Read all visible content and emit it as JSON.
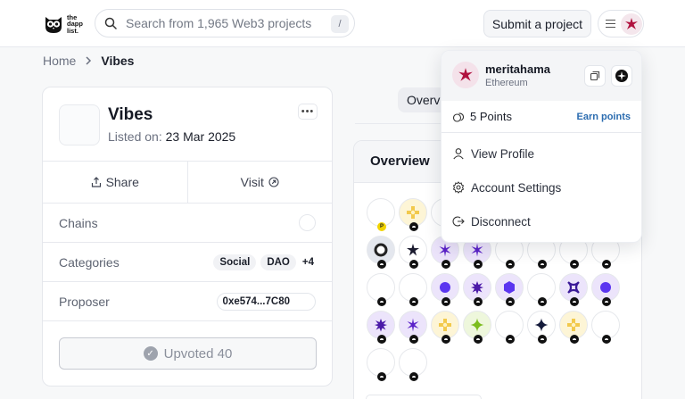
{
  "header": {
    "logo_text_lines": [
      "the",
      "dapp",
      "list."
    ],
    "search_placeholder": "Search from 1,965 Web3 projects",
    "search_shortcut": "/",
    "submit_label": "Submit a project"
  },
  "breadcrumb": {
    "home": "Home",
    "current": "Vibes"
  },
  "project": {
    "name": "Vibes",
    "listed_label": "Listed on:",
    "listed_date": "23 Mar 2025",
    "more": "•••",
    "share_label": "Share",
    "visit_label": "Visit",
    "chains_label": "Chains",
    "categories_label": "Categories",
    "categories": [
      "Social",
      "DAO"
    ],
    "categories_more": "+4",
    "proposer_label": "Proposer",
    "proposer_address": "0xe574...7C80",
    "upvote_label": "Upvoted 40"
  },
  "tabs": {
    "overview_partial": "Overview"
  },
  "overview": {
    "title": "Overview"
  },
  "dropdown": {
    "username": "meritahama",
    "network": "Ethereum",
    "points": "5 Points",
    "earn_points": "Earn points",
    "items": [
      "View Profile",
      "Account Settings",
      "Disconnect"
    ]
  },
  "colors": {
    "accent_link": "#2b6cb0",
    "avatar_star": "#b0123f",
    "nft_purple": "#5b22c9"
  },
  "nfts": [
    {
      "row": 0,
      "col": 0,
      "icon": "empty",
      "badge": "p"
    },
    {
      "row": 0,
      "col": 1,
      "icon": "yellow-cross",
      "badge": "dot"
    },
    {
      "row": 0,
      "col": 2,
      "icon": "empty",
      "badge": "dot"
    },
    {
      "row": 1,
      "col": 0,
      "icon": "ring",
      "badge": "dot"
    },
    {
      "row": 1,
      "col": 1,
      "icon": "black-star",
      "badge": "dot"
    },
    {
      "row": 1,
      "col": 2,
      "icon": "purple-asterisk",
      "badge": "dot"
    },
    {
      "row": 1,
      "col": 3,
      "icon": "purple-asterisk",
      "badge": "dot"
    },
    {
      "row": 1,
      "col": 4,
      "icon": "empty",
      "badge": "dot"
    },
    {
      "row": 1,
      "col": 5,
      "icon": "empty",
      "badge": "dot"
    },
    {
      "row": 1,
      "col": 6,
      "icon": "empty",
      "badge": "dot"
    },
    {
      "row": 1,
      "col": 7,
      "icon": "empty",
      "badge": "dot"
    },
    {
      "row": 2,
      "col": 0,
      "icon": "empty",
      "badge": "dot"
    },
    {
      "row": 2,
      "col": 1,
      "icon": "empty",
      "badge": "dot"
    },
    {
      "row": 2,
      "col": 2,
      "icon": "purple-circle",
      "badge": "dot"
    },
    {
      "row": 2,
      "col": 3,
      "icon": "purple-burst",
      "badge": "dot"
    },
    {
      "row": 2,
      "col": 4,
      "icon": "purple-hex",
      "badge": "dot"
    },
    {
      "row": 2,
      "col": 5,
      "icon": "empty",
      "badge": "dot"
    },
    {
      "row": 2,
      "col": 6,
      "icon": "purple-x",
      "badge": "dot"
    },
    {
      "row": 2,
      "col": 7,
      "icon": "purple-circle",
      "badge": "dot"
    },
    {
      "row": 3,
      "col": 0,
      "icon": "purple-burst",
      "badge": "dot"
    },
    {
      "row": 3,
      "col": 1,
      "icon": "purple-asterisk",
      "badge": "dot"
    },
    {
      "row": 3,
      "col": 2,
      "icon": "yellow-cross",
      "badge": "dot"
    },
    {
      "row": 3,
      "col": 3,
      "icon": "green-sparkle",
      "badge": "dot"
    },
    {
      "row": 3,
      "col": 4,
      "icon": "empty",
      "badge": "dot"
    },
    {
      "row": 3,
      "col": 5,
      "icon": "navy-sparkle",
      "badge": "dot"
    },
    {
      "row": 3,
      "col": 6,
      "icon": "yellow-cross",
      "badge": "dot"
    },
    {
      "row": 3,
      "col": 7,
      "icon": "empty",
      "badge": "dot"
    },
    {
      "row": 4,
      "col": 0,
      "icon": "empty",
      "badge": "dot"
    },
    {
      "row": 4,
      "col": 1,
      "icon": "empty",
      "badge": "dot"
    }
  ]
}
